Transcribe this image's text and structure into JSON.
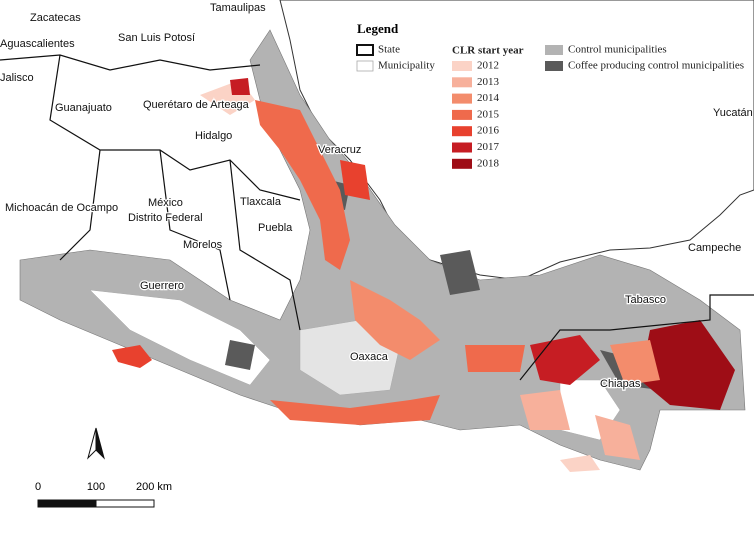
{
  "legend": {
    "title": "Legend",
    "boundaries": [
      {
        "label": "State"
      },
      {
        "label": "Municipality"
      }
    ],
    "clr_title": "CLR start year",
    "years": [
      {
        "label": "2012",
        "color": "#fbd3c6"
      },
      {
        "label": "2013",
        "color": "#f7b09b"
      },
      {
        "label": "2014",
        "color": "#f38c6c"
      },
      {
        "label": "2015",
        "color": "#ef6a4c"
      },
      {
        "label": "2016",
        "color": "#e8412e"
      },
      {
        "label": "2017",
        "color": "#c61d23"
      },
      {
        "label": "2018",
        "color": "#9e0d16"
      }
    ],
    "controls": [
      {
        "label": "Control municipalities",
        "color": "#b3b3b3"
      },
      {
        "label": "Coffee producing control municipalities",
        "color": "#5a5a5a"
      }
    ]
  },
  "states": [
    "Zacatecas",
    "Tamaulipas",
    "Aguascalientes",
    "San Luis Potosí",
    "Jalisco",
    "Guanajuato",
    "Querétaro de Arteaga",
    "Hidalgo",
    "Veracruz",
    "Yucatán",
    "Michoacán de Ocampo",
    "México",
    "Distrito Federal",
    "Tlaxcala",
    "Puebla",
    "Morelos",
    "Campeche",
    "Guerrero",
    "Tabasco",
    "Oaxaca",
    "Chiapas"
  ],
  "scale": {
    "labels": [
      "0",
      "100",
      "200 km"
    ]
  }
}
